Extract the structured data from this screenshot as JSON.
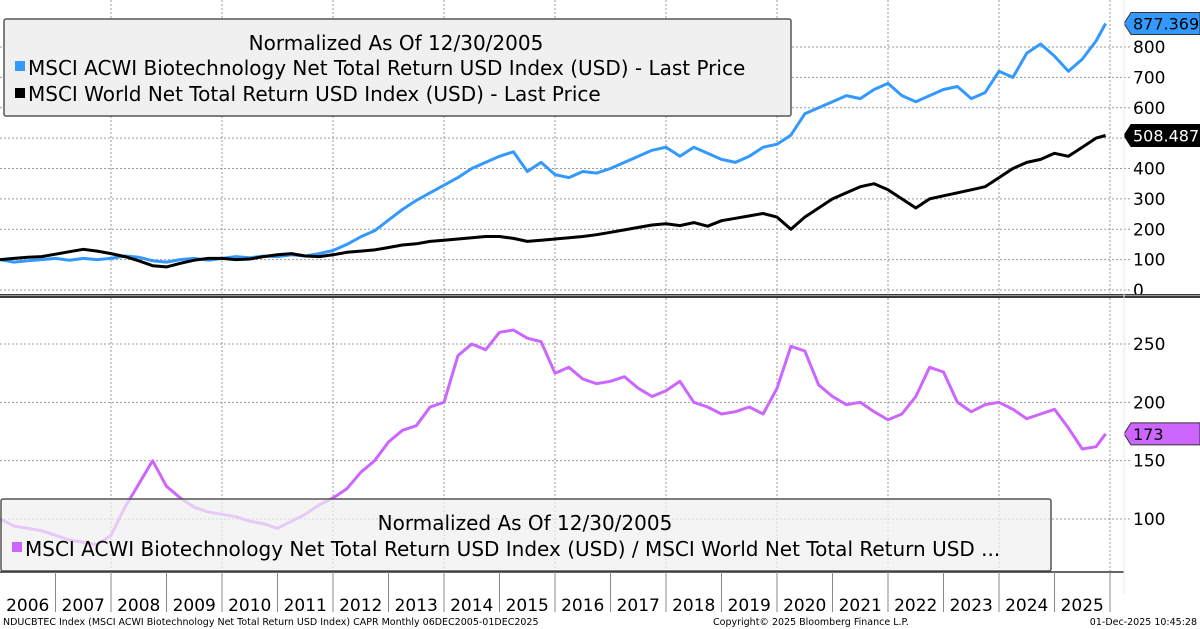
{
  "chart_data": [
    {
      "type": "line",
      "panel": "top",
      "title": "",
      "legend": {
        "header": "Normalized As Of 12/30/2005",
        "placement": "top-left",
        "entries": [
          {
            "label": "MSCI ACWI Biotechnology Net Total Return USD Index (USD) - Last Price",
            "color": "#3399ff"
          },
          {
            "label": "MSCI World Net Total Return USD Index (USD) - Last Price",
            "color": "#000000"
          }
        ]
      },
      "ylim": [
        0,
        880
      ],
      "yticks": [
        0,
        100,
        200,
        300,
        400,
        500,
        600,
        700,
        800
      ],
      "ytick_labels": [
        "0",
        "100",
        "200",
        "300",
        "400",
        "500",
        "600",
        "700",
        "800"
      ],
      "y_axis_position": "right",
      "grid": true,
      "x": [
        2006.0,
        2006.25,
        2006.5,
        2006.75,
        2007.0,
        2007.25,
        2007.5,
        2007.75,
        2008.0,
        2008.25,
        2008.5,
        2008.75,
        2009.0,
        2009.25,
        2009.5,
        2009.75,
        2010.0,
        2010.25,
        2010.5,
        2010.75,
        2011.0,
        2011.25,
        2011.5,
        2011.75,
        2012.0,
        2012.25,
        2012.5,
        2012.75,
        2013.0,
        2013.25,
        2013.5,
        2013.75,
        2014.0,
        2014.25,
        2014.5,
        2014.75,
        2015.0,
        2015.25,
        2015.5,
        2015.75,
        2016.0,
        2016.25,
        2016.5,
        2016.75,
        2017.0,
        2017.25,
        2017.5,
        2017.75,
        2018.0,
        2018.25,
        2018.5,
        2018.75,
        2019.0,
        2019.25,
        2019.5,
        2019.75,
        2020.0,
        2020.25,
        2020.5,
        2020.75,
        2021.0,
        2021.25,
        2021.5,
        2021.75,
        2022.0,
        2022.25,
        2022.5,
        2022.75,
        2023.0,
        2023.25,
        2023.5,
        2023.75,
        2024.0,
        2024.25,
        2024.5,
        2024.75,
        2025.0,
        2025.25,
        2025.5,
        2025.75,
        2025.92
      ],
      "series": [
        {
          "name": "MSCI ACWI Biotechnology Net Total Return USD Index (USD) - Last Price",
          "color": "#3399ff",
          "last_value_label": "877.369",
          "values": [
            100,
            92,
            96,
            100,
            104,
            98,
            104,
            100,
            104,
            112,
            108,
            96,
            92,
            100,
            104,
            98,
            104,
            110,
            106,
            112,
            110,
            116,
            112,
            120,
            130,
            150,
            175,
            195,
            230,
            265,
            295,
            320,
            345,
            370,
            400,
            420,
            440,
            455,
            390,
            420,
            380,
            370,
            390,
            385,
            400,
            420,
            440,
            460,
            470,
            440,
            470,
            450,
            430,
            420,
            440,
            470,
            480,
            510,
            580,
            600,
            620,
            640,
            630,
            660,
            680,
            640,
            620,
            640,
            660,
            670,
            630,
            650,
            720,
            700,
            780,
            810,
            770,
            720,
            760,
            820,
            877.369
          ]
        },
        {
          "name": "MSCI World Net Total Return USD Index (USD) - Last Price",
          "color": "#000000",
          "last_value_label": "508.487",
          "values": [
            100,
            104,
            108,
            110,
            118,
            126,
            134,
            128,
            120,
            110,
            96,
            80,
            76,
            88,
            98,
            104,
            104,
            100,
            102,
            110,
            116,
            120,
            112,
            110,
            116,
            124,
            128,
            132,
            140,
            148,
            152,
            160,
            164,
            168,
            172,
            176,
            176,
            170,
            160,
            164,
            168,
            172,
            176,
            182,
            190,
            198,
            206,
            214,
            218,
            212,
            222,
            210,
            228,
            236,
            244,
            252,
            240,
            200,
            240,
            270,
            300,
            320,
            340,
            350,
            330,
            300,
            270,
            300,
            310,
            320,
            330,
            340,
            370,
            400,
            420,
            430,
            450,
            440,
            470,
            500,
            508.487
          ]
        }
      ]
    },
    {
      "type": "line",
      "panel": "bottom",
      "title": "",
      "legend": {
        "header": "Normalized As Of 12/30/2005",
        "placement": "bottom-left",
        "entries": [
          {
            "label": "MSCI ACWI Biotechnology Net Total Return USD Index (USD) / MSCI World Net Total Return USD ...",
            "color": "#cc66ff"
          }
        ]
      },
      "ylim": [
        54,
        278
      ],
      "yticks": [
        100,
        150,
        200,
        250
      ],
      "ytick_labels": [
        "100",
        "150",
        "200",
        "250"
      ],
      "y_axis_position": "right",
      "grid": true,
      "x": [
        2006.0,
        2006.25,
        2006.5,
        2006.75,
        2007.0,
        2007.25,
        2007.5,
        2007.75,
        2008.0,
        2008.25,
        2008.5,
        2008.75,
        2009.0,
        2009.25,
        2009.5,
        2009.75,
        2010.0,
        2010.25,
        2010.5,
        2010.75,
        2011.0,
        2011.25,
        2011.5,
        2011.75,
        2012.0,
        2012.25,
        2012.5,
        2012.75,
        2013.0,
        2013.25,
        2013.5,
        2013.75,
        2014.0,
        2014.25,
        2014.5,
        2014.75,
        2015.0,
        2015.25,
        2015.5,
        2015.75,
        2016.0,
        2016.25,
        2016.5,
        2016.75,
        2017.0,
        2017.25,
        2017.5,
        2017.75,
        2018.0,
        2018.25,
        2018.5,
        2018.75,
        2019.0,
        2019.25,
        2019.5,
        2019.75,
        2020.0,
        2020.25,
        2020.5,
        2020.75,
        2021.0,
        2021.25,
        2021.5,
        2021.75,
        2022.0,
        2022.25,
        2022.5,
        2022.75,
        2023.0,
        2023.25,
        2023.5,
        2023.75,
        2024.0,
        2024.25,
        2024.5,
        2024.75,
        2025.0,
        2025.25,
        2025.5,
        2025.75,
        2025.92
      ],
      "series": [
        {
          "name": "MSCI ACWI Biotechnology Net Total Return USD Index (USD) / MSCI World Net Total Return USD ...",
          "color": "#cc66ff",
          "last_value_label": "173",
          "values": [
            100,
            94,
            92,
            90,
            86,
            82,
            80,
            78,
            86,
            110,
            130,
            150,
            128,
            118,
            110,
            106,
            104,
            102,
            98,
            96,
            92,
            98,
            104,
            112,
            118,
            126,
            140,
            150,
            166,
            176,
            180,
            196,
            200,
            240,
            250,
            245,
            260,
            262,
            255,
            252,
            225,
            230,
            220,
            216,
            218,
            222,
            212,
            205,
            210,
            218,
            200,
            196,
            190,
            192,
            196,
            190,
            212,
            248,
            244,
            215,
            205,
            198,
            200,
            192,
            185,
            190,
            205,
            230,
            226,
            200,
            192,
            198,
            200,
            194,
            186,
            190,
            194,
            178,
            160,
            162,
            173
          ]
        }
      ]
    }
  ],
  "x_axis": {
    "year_labels": [
      "2006",
      "2007",
      "2008",
      "2009",
      "2010",
      "2011",
      "2012",
      "2013",
      "2014",
      "2015",
      "2016",
      "2017",
      "2018",
      "2019",
      "2020",
      "2021",
      "2022",
      "2023",
      "2024",
      "2025"
    ]
  },
  "footer": {
    "source": "NDUCBTEC Index (MSCI ACWI Biotechnology Net Total Return USD Index) CAPR Monthly 06DEC2005-01DEC2025",
    "copyright": "Copyright© 2025 Bloomberg Finance L.P.",
    "timestamp": "01-Dec-2025 10:45:28"
  }
}
